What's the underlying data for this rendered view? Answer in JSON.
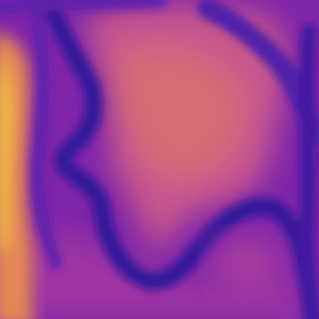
{
  "image": {
    "kind": "heatmap-texture",
    "colormap": "plasma",
    "palette": {
      "low": "#1a0a8c",
      "low_mid": "#4a0ca8",
      "mid": "#8a1ea8",
      "high_mid": "#c84a86",
      "high": "#e8844e",
      "peak": "#f8c030"
    }
  }
}
